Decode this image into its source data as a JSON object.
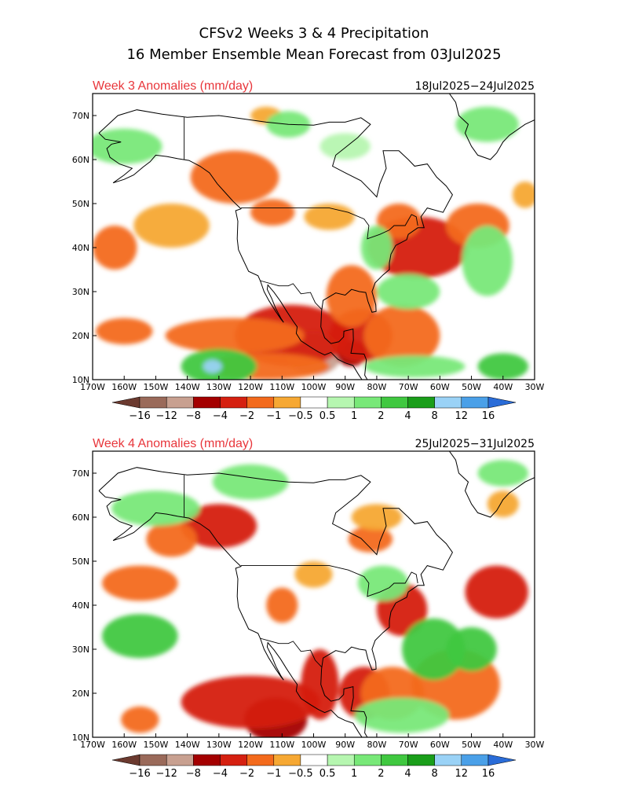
{
  "title": {
    "line1": "CFSv2 Weeks 3 & 4 Precipitation",
    "line2": "16 Member Ensemble Mean Forecast from 03Jul2025"
  },
  "colors": {
    "anomaly_title": "#e8363b",
    "bins": [
      "#6b3a2f",
      "#9a6a5a",
      "#c8a090",
      "#a40000",
      "#d52010",
      "#f36a1c",
      "#f6a833",
      "#ffffff",
      "#b6f6b0",
      "#78e878",
      "#40c840",
      "#1a9e1a",
      "#9ad2f6",
      "#4aa0e8",
      "#2a6cd8"
    ]
  },
  "legend": {
    "labels": [
      "−16",
      "−12",
      "−8",
      "−4",
      "−2",
      "−1",
      "−0.5",
      "0.5",
      "1",
      "2",
      "4",
      "8",
      "12",
      "16"
    ]
  },
  "panels": [
    {
      "heading": "Week 3 Anomalies (mm/day)",
      "dates": "18Jul2025−24Jul2025"
    },
    {
      "heading": "Week 4 Anomalies (mm/day)",
      "dates": "25Jul2025−31Jul2025"
    }
  ],
  "chart_data": {
    "type": "heatmap",
    "variable": "precipitation anomaly",
    "units": "mm/day",
    "x_ticks": [
      "170W",
      "160W",
      "150W",
      "140W",
      "130W",
      "120W",
      "110W",
      "100W",
      "90W",
      "80W",
      "70W",
      "60W",
      "50W",
      "40W",
      "30W"
    ],
    "y_ticks": [
      "10N",
      "20N",
      "30N",
      "40N",
      "50N",
      "60N",
      "70N"
    ],
    "xlim_deg": [
      -170,
      -30
    ],
    "ylim_deg": [
      10,
      75
    ],
    "bin_edges": [
      -16,
      -12,
      -8,
      -4,
      -2,
      -1,
      -0.5,
      0.5,
      1,
      2,
      4,
      8,
      12,
      16
    ],
    "panels": [
      {
        "period": "18Jul2025−24Jul2025",
        "regions": [
          {
            "lon": -100,
            "lat": 16,
            "rx": 9,
            "ry": 5,
            "value": -10
          },
          {
            "lon": -88,
            "lat": 16,
            "rx": 5,
            "ry": 3,
            "value": -8
          },
          {
            "lon": -107,
            "lat": 20,
            "rx": 18,
            "ry": 7,
            "value": -3
          },
          {
            "lon": -85,
            "lat": 20,
            "rx": 10,
            "ry": 6,
            "value": -3
          },
          {
            "lon": -72,
            "lat": 20,
            "rx": 12,
            "ry": 7,
            "value": -2
          },
          {
            "lon": -125,
            "lat": 20,
            "rx": 22,
            "ry": 4,
            "value": -1.5
          },
          {
            "lon": -160,
            "lat": 21,
            "rx": 9,
            "ry": 3,
            "value": -1.5
          },
          {
            "lon": -88,
            "lat": 29,
            "rx": 8,
            "ry": 7,
            "value": -2
          },
          {
            "lon": -67,
            "lat": 40,
            "rx": 16,
            "ry": 7,
            "value": -2.5
          },
          {
            "lon": -73,
            "lat": 46,
            "rx": 7,
            "ry": 4,
            "value": -2
          },
          {
            "lon": -48,
            "lat": 45,
            "rx": 10,
            "ry": 5,
            "value": -1.5
          },
          {
            "lon": -163,
            "lat": 40,
            "rx": 7,
            "ry": 5,
            "value": -2
          },
          {
            "lon": -145,
            "lat": 45,
            "rx": 12,
            "ry": 5,
            "value": -1
          },
          {
            "lon": -125,
            "lat": 56,
            "rx": 14,
            "ry": 6,
            "value": -2
          },
          {
            "lon": -113,
            "lat": 48,
            "rx": 7,
            "ry": 3,
            "value": -1.5
          },
          {
            "lon": -95,
            "lat": 47,
            "rx": 8,
            "ry": 3,
            "value": -0.8
          },
          {
            "lon": -33,
            "lat": 52,
            "rx": 4,
            "ry": 3,
            "value": -1
          },
          {
            "lon": -115,
            "lat": 70,
            "rx": 5,
            "ry": 2,
            "value": -0.8
          },
          {
            "lon": -115,
            "lat": 13,
            "rx": 20,
            "ry": 3,
            "value": -1.2
          },
          {
            "lon": -130,
            "lat": 13,
            "rx": 12,
            "ry": 4,
            "value": 3
          },
          {
            "lon": -132,
            "lat": 13,
            "rx": 3,
            "ry": 1.5,
            "value": 10
          },
          {
            "lon": -68,
            "lat": 13,
            "rx": 16,
            "ry": 2.5,
            "value": 1.5
          },
          {
            "lon": -40,
            "lat": 13,
            "rx": 8,
            "ry": 3,
            "value": 3
          },
          {
            "lon": -80,
            "lat": 40,
            "rx": 5,
            "ry": 5,
            "value": 1.2
          },
          {
            "lon": -70,
            "lat": 30,
            "rx": 10,
            "ry": 4,
            "value": 1
          },
          {
            "lon": -160,
            "lat": 63,
            "rx": 12,
            "ry": 4,
            "value": 1.5
          },
          {
            "lon": -108,
            "lat": 68,
            "rx": 7,
            "ry": 3,
            "value": 1.5
          },
          {
            "lon": -45,
            "lat": 68,
            "rx": 10,
            "ry": 4,
            "value": 1.5
          },
          {
            "lon": -90,
            "lat": 63,
            "rx": 8,
            "ry": 3,
            "value": 0.8
          },
          {
            "lon": -45,
            "lat": 37,
            "rx": 8,
            "ry": 8,
            "value": 1
          }
        ]
      },
      {
        "period": "25Jul2025−31Jul2025",
        "regions": [
          {
            "lon": -112,
            "lat": 14,
            "rx": 10,
            "ry": 5,
            "value": -8
          },
          {
            "lon": -120,
            "lat": 18,
            "rx": 22,
            "ry": 6,
            "value": -2.5
          },
          {
            "lon": -98,
            "lat": 22,
            "rx": 6,
            "ry": 8,
            "value": -3
          },
          {
            "lon": -84,
            "lat": 20,
            "rx": 8,
            "ry": 6,
            "value": -3
          },
          {
            "lon": -75,
            "lat": 20,
            "rx": 10,
            "ry": 6,
            "value": -2
          },
          {
            "lon": -55,
            "lat": 22,
            "rx": 14,
            "ry": 8,
            "value": -1.5
          },
          {
            "lon": -155,
            "lat": 14,
            "rx": 6,
            "ry": 3,
            "value": -2
          },
          {
            "lon": -130,
            "lat": 58,
            "rx": 12,
            "ry": 5,
            "value": -4
          },
          {
            "lon": -145,
            "lat": 55,
            "rx": 8,
            "ry": 4,
            "value": -1.5
          },
          {
            "lon": -155,
            "lat": 45,
            "rx": 12,
            "ry": 4,
            "value": -2
          },
          {
            "lon": -72,
            "lat": 39,
            "rx": 8,
            "ry": 6,
            "value": -4
          },
          {
            "lon": -42,
            "lat": 43,
            "rx": 10,
            "ry": 6,
            "value": -3
          },
          {
            "lon": -82,
            "lat": 55,
            "rx": 7,
            "ry": 3,
            "value": -1.5
          },
          {
            "lon": -110,
            "lat": 40,
            "rx": 5,
            "ry": 4,
            "value": -1.5
          },
          {
            "lon": -100,
            "lat": 47,
            "rx": 6,
            "ry": 3,
            "value": -1
          },
          {
            "lon": -80,
            "lat": 60,
            "rx": 8,
            "ry": 3,
            "value": -0.8
          },
          {
            "lon": -40,
            "lat": 63,
            "rx": 5,
            "ry": 3,
            "value": -1
          },
          {
            "lon": -155,
            "lat": 33,
            "rx": 12,
            "ry": 5,
            "value": 2.5
          },
          {
            "lon": -62,
            "lat": 30,
            "rx": 10,
            "ry": 7,
            "value": 3
          },
          {
            "lon": -50,
            "lat": 30,
            "rx": 8,
            "ry": 5,
            "value": 2
          },
          {
            "lon": -72,
            "lat": 15,
            "rx": 15,
            "ry": 4,
            "value": 1.5
          },
          {
            "lon": -78,
            "lat": 45,
            "rx": 8,
            "ry": 4,
            "value": 1.5
          },
          {
            "lon": -150,
            "lat": 62,
            "rx": 14,
            "ry": 4,
            "value": 1
          },
          {
            "lon": -120,
            "lat": 68,
            "rx": 12,
            "ry": 4,
            "value": 1
          },
          {
            "lon": -40,
            "lat": 70,
            "rx": 8,
            "ry": 3,
            "value": 1
          }
        ]
      }
    ]
  }
}
